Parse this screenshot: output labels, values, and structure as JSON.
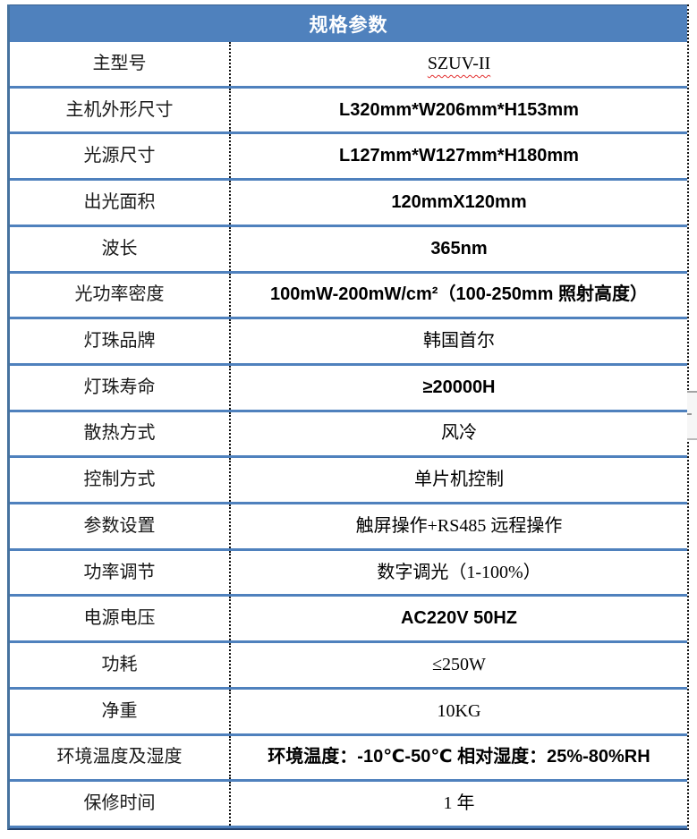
{
  "table": {
    "title": "规格参数",
    "rows": [
      {
        "label": "主型号",
        "value": "SZUV-II",
        "value_style": "serif",
        "spellcheck": true
      },
      {
        "label": "主机外形尺寸",
        "value": "L320mm*W206mm*H153mm",
        "value_style": "sans-bold"
      },
      {
        "label": "光源尺寸",
        "value": "L127mm*W127mm*H180mm",
        "value_style": "sans-bold"
      },
      {
        "label": "出光面积",
        "value": "120mmX120mm",
        "value_style": "sans-bold"
      },
      {
        "label": "波长",
        "value": "365nm",
        "value_style": "sans-bold"
      },
      {
        "label": "光功率密度",
        "value": "100mW-200mW/cm²（100-250mm 照射高度）",
        "value_style": "sans-bold"
      },
      {
        "label": "灯珠品牌",
        "value": "韩国首尔",
        "value_style": "serif"
      },
      {
        "label": "灯珠寿命",
        "value": "≥20000H",
        "value_style": "sans-bold"
      },
      {
        "label": "散热方式",
        "value": "风冷",
        "value_style": "serif"
      },
      {
        "label": "控制方式",
        "value": "单片机控制",
        "value_style": "serif"
      },
      {
        "label": "参数设置",
        "value": "触屏操作+RS485 远程操作",
        "value_style": "serif"
      },
      {
        "label": "功率调节",
        "value": "数字调光（1-100%）",
        "value_style": "serif"
      },
      {
        "label": "电源电压",
        "value": "AC220V 50HZ",
        "value_style": "sans-bold"
      },
      {
        "label": "功耗",
        "value": "≤250W",
        "value_style": "serif"
      },
      {
        "label": "净重",
        "value": "10KG",
        "value_style": "serif"
      },
      {
        "label": "环境温度及湿度",
        "value": "环境温度：-10℃-50℃  相对湿度：25%-80%RH",
        "value_style": "sans-bold"
      },
      {
        "label": "保修时间",
        "value": "1 年",
        "value_style": "serif"
      }
    ]
  },
  "colors": {
    "header_blue": "#4f81bd",
    "row_separator_blue": "#4f81bd",
    "outer_border_navy": "#23406b",
    "divider_dotted_black": "#141414",
    "spellcheck_red": "#e33030",
    "header_text": "#ffffff",
    "body_text": "#000000",
    "scrollbar_fill": "#f6f6f6",
    "scrollbar_line": "#a3a3a3"
  }
}
